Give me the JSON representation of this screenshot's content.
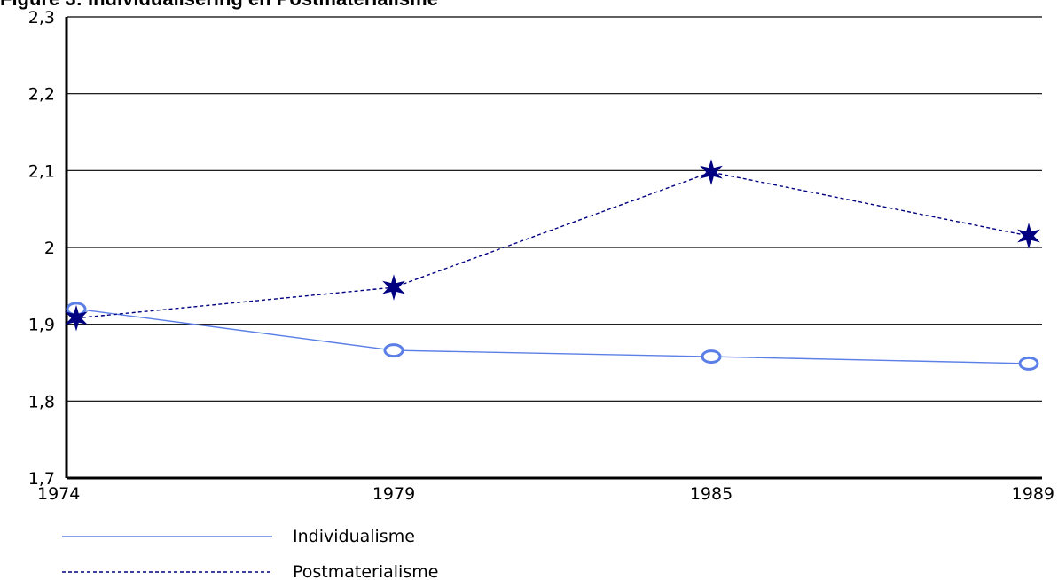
{
  "chart_data": {
    "type": "line",
    "title": "",
    "partial_title_text": "Figure 3: Individualisering en Postmaterialisme",
    "xlabel": "",
    "ylabel": "",
    "x": [
      "1974",
      "1979",
      "1985",
      "1989"
    ],
    "y_ticks": [
      "1,7",
      "1,8",
      "1,9",
      "2",
      "2,1",
      "2,2",
      "2,3"
    ],
    "ylim": [
      1.7,
      2.3
    ],
    "grid": "horizontal",
    "legend_position": "bottom-left",
    "series": [
      {
        "name": "Individualisme",
        "values": [
          1.92,
          1.866,
          1.858,
          1.849
        ],
        "color": "#5b7fe6",
        "line_style": "solid",
        "marker": "circle"
      },
      {
        "name": "Postmaterialisme",
        "values": [
          1.908,
          1.948,
          2.098,
          2.015
        ],
        "color": "#000080",
        "line_style": "dashed",
        "marker": "star"
      }
    ]
  }
}
